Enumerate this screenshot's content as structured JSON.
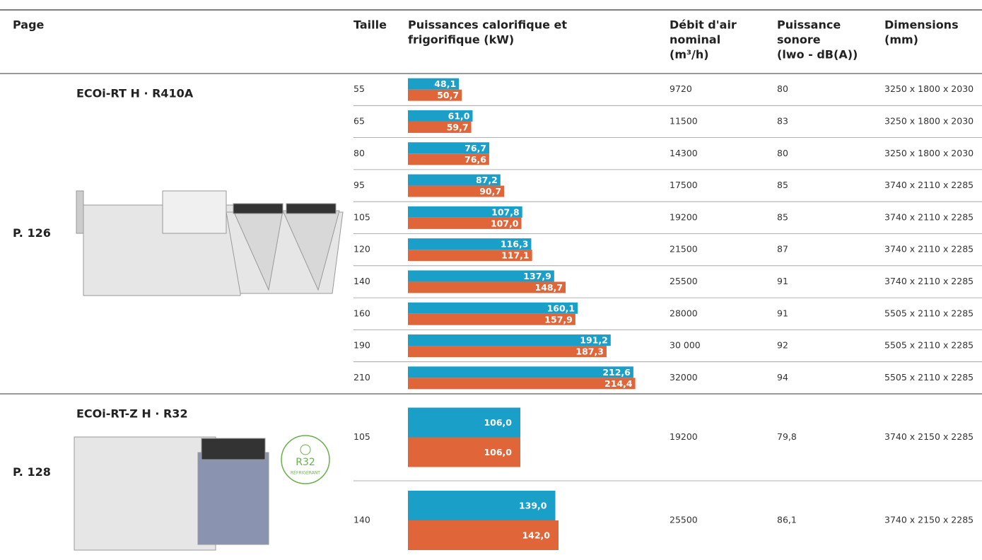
{
  "header": {
    "page": "Page",
    "size": "Taille",
    "power": [
      "Puissances calorifique et",
      "frigorifique (kW)"
    ],
    "airflow": [
      "Débit d'air",
      "nominal",
      "(m³/h)"
    ],
    "sound": [
      "Puissance",
      "sonore",
      "(lwo - dB(A))"
    ],
    "dimensions": [
      "Dimensions",
      "(mm)"
    ]
  },
  "groups": [
    {
      "page": "P. 126",
      "name": "ECOi-RT H · R410A",
      "sizes": [
        "55",
        "65",
        "80",
        "95",
        "105",
        "120",
        "140",
        "160",
        "190",
        "210"
      ],
      "heating": {
        "color": "#1a9fc9",
        "values": [
          48.1,
          61.0,
          76.7,
          87.2,
          107.8,
          116.3,
          137.9,
          160.1,
          191.2,
          212.6
        ],
        "value_labels": [
          "48,1",
          "61,0",
          "76,7",
          "87,2",
          "107,8",
          "116,3",
          "137,9",
          "160,1",
          "191,2",
          "212,6"
        ]
      },
      "cooling": {
        "color": "#e0663a",
        "values": [
          50.7,
          59.7,
          76.6,
          90.7,
          107.0,
          117.1,
          148.7,
          157.9,
          187.3,
          214.4
        ],
        "value_labels": [
          "50,7",
          "59,7",
          "76,6",
          "90,7",
          "107,0",
          "117,1",
          "148,7",
          "157,9",
          "187,3",
          "214,4"
        ]
      },
      "airflow": [
        "9720",
        "11500",
        "14300",
        "17500",
        "19200",
        "21500",
        "25500",
        "28000",
        "30 000",
        "32000"
      ],
      "sound": [
        "80",
        "83",
        "80",
        "85",
        "85",
        "87",
        "91",
        "91",
        "92",
        "94"
      ],
      "dimensions": [
        "3250 x 1800 x 2030",
        "3250 x 1800 x 2030",
        "3250 x 1800 x 2030",
        "3740 x 2110 x 2285",
        "3740 x 2110 x 2285",
        "3740 x 2110 x 2285",
        "3740 x 2110 x 2285",
        "5505 x 2110 x 2285",
        "5505 x 2110 x 2285",
        "5505 x 2110 x 2285"
      ]
    },
    {
      "page": "P. 128",
      "name": "ECOi-RT-Z H · R32",
      "badge": [
        "R32",
        "RÉFRIGÉRANT"
      ],
      "sizes": [
        "105",
        "140"
      ],
      "heating": {
        "color": "#1a9fc9",
        "values": [
          106.0,
          139.0
        ],
        "value_labels": [
          "106,0",
          "139,0"
        ]
      },
      "cooling": {
        "color": "#e0663a",
        "values": [
          106.0,
          142.0
        ],
        "value_labels": [
          "106,0",
          "142,0"
        ]
      },
      "airflow": [
        "19200",
        "25500"
      ],
      "sound": [
        "79,8",
        "86,1"
      ],
      "dimensions": [
        "3740 x 2150 x 2285",
        "3740 x 2150 x 2285"
      ]
    }
  ]
}
